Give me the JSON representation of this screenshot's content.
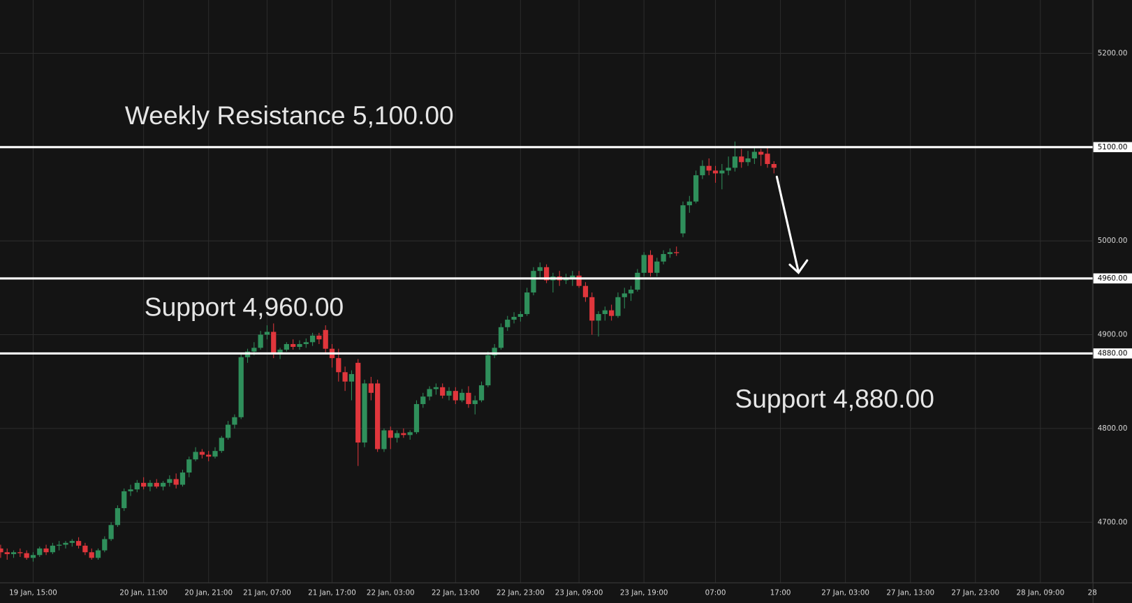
{
  "chart_data": {
    "type": "candlestick",
    "up_color": "#2f8f5b",
    "down_color": "#e0363c",
    "grid": true,
    "xlim": [
      -0.1,
      168.1
    ],
    "ylim": [
      4635.4,
      5256.9
    ],
    "xticks": [
      {
        "value": 5,
        "label": "19 Jan, 15:00"
      },
      {
        "value": 22,
        "label": "20 Jan, 11:00"
      },
      {
        "value": 32,
        "label": "20 Jan, 21:00"
      },
      {
        "value": 41,
        "label": "21 Jan, 07:00"
      },
      {
        "value": 51,
        "label": "21 Jan, 17:00"
      },
      {
        "value": 60,
        "label": "22 Jan, 03:00"
      },
      {
        "value": 70,
        "label": "22 Jan, 13:00"
      },
      {
        "value": 80,
        "label": "22 Jan, 23:00"
      },
      {
        "value": 89,
        "label": "23 Jan, 09:00"
      },
      {
        "value": 99,
        "label": "23 Jan, 19:00"
      },
      {
        "value": 110,
        "label": "07:00"
      },
      {
        "value": 120,
        "label": "17:00"
      },
      {
        "value": 130,
        "label": "27 Jan, 03:00"
      },
      {
        "value": 140,
        "label": "27 Jan, 13:00"
      },
      {
        "value": 150,
        "label": "27 Jan, 23:00"
      },
      {
        "value": 160,
        "label": "28 Jan, 09:00"
      },
      {
        "value": 168,
        "label": "28"
      }
    ],
    "yticks": [
      {
        "value": 4700,
        "label": "4700.00"
      },
      {
        "value": 4800,
        "label": "4800.00"
      },
      {
        "value": 4900,
        "label": "4900.00"
      },
      {
        "value": 5000,
        "label": "5000.00"
      },
      {
        "value": 5200,
        "label": "5200.00"
      }
    ],
    "levels": [
      {
        "value": 5100,
        "label": "5100.00",
        "text": "Weekly Resistance 5,100.00"
      },
      {
        "value": 4960,
        "label": "4960.00",
        "text": "Support 4,960.00"
      },
      {
        "value": 4880,
        "label": "4880.00",
        "text": "Support 4,880.00"
      }
    ],
    "open": [
      4672,
      4668,
      4666,
      4668,
      4667,
      4662,
      4665,
      4672,
      4668,
      4675,
      4676,
      4678,
      4680,
      4675,
      4668,
      4662,
      4670,
      4682,
      4697,
      4715,
      4733,
      4735,
      4742,
      4738,
      4742,
      4738,
      4742,
      4746,
      4740,
      4753,
      4767,
      4775,
      4772,
      4770,
      4776,
      4790,
      4804,
      4812,
      4876,
      4882,
      4886,
      4900,
      4903,
      4880,
      4884,
      4890,
      4887,
      4890,
      4892,
      4899,
      4905,
      4885,
      4875,
      4860,
      4850,
      4870,
      4785,
      4848,
      4848,
      4778,
      4798,
      4790,
      4795,
      4793,
      4796,
      4826,
      4834,
      4842,
      4844,
      4835,
      4840,
      4830,
      4838,
      4826,
      4830,
      4846,
      4878,
      4886,
      4908,
      4916,
      4919,
      4922,
      4945,
      4968,
      4972,
      4958,
      4962,
      4958,
      4960,
      4963,
      4952,
      4940,
      4915,
      4922,
      4926,
      4920,
      4940,
      4944,
      4948,
      4966,
      4985,
      4966,
      4978,
      4986,
      4988,
      5008,
      5038,
      5042,
      5070,
      5080,
      5075,
      5072,
      5075,
      5078,
      5090,
      5084,
      5088,
      5095,
      5093,
      5082
    ],
    "high": [
      4676,
      4672,
      4670,
      4672,
      4670,
      4668,
      4674,
      4676,
      4678,
      4680,
      4680,
      4682,
      4684,
      4678,
      4672,
      4672,
      4685,
      4700,
      4718,
      4736,
      4740,
      4745,
      4748,
      4745,
      4746,
      4744,
      4750,
      4752,
      4756,
      4770,
      4780,
      4778,
      4776,
      4780,
      4792,
      4808,
      4815,
      4880,
      4885,
      4892,
      4904,
      4910,
      4912,
      4886,
      4892,
      4895,
      4894,
      4896,
      4902,
      4902,
      4910,
      4890,
      4885,
      4866,
      4862,
      4874,
      4852,
      4855,
      4852,
      4800,
      4802,
      4798,
      4800,
      4798,
      4830,
      4838,
      4845,
      4848,
      4848,
      4844,
      4844,
      4842,
      4845,
      4835,
      4850,
      4882,
      4890,
      4912,
      4920,
      4924,
      4925,
      4950,
      4972,
      4977,
      4975,
      4966,
      4968,
      4965,
      4968,
      4968,
      4956,
      4945,
      4925,
      4930,
      4932,
      4945,
      4950,
      4952,
      4970,
      4988,
      4990,
      4982,
      4990,
      4992,
      4994,
      5042,
      5048,
      5075,
      5086,
      5088,
      5080,
      5082,
      5090,
      5106,
      5098,
      5096,
      5100,
      5098,
      5100,
      5085
    ],
    "low": [
      4662,
      4660,
      4662,
      4663,
      4660,
      4658,
      4663,
      4665,
      4666,
      4670,
      4672,
      4674,
      4672,
      4665,
      4660,
      4660,
      4668,
      4680,
      4695,
      4712,
      4728,
      4732,
      4735,
      4733,
      4736,
      4734,
      4738,
      4736,
      4738,
      4748,
      4765,
      4768,
      4765,
      4768,
      4774,
      4788,
      4800,
      4810,
      4870,
      4878,
      4884,
      4895,
      4875,
      4874,
      4882,
      4884,
      4884,
      4886,
      4888,
      4890,
      4880,
      4865,
      4850,
      4840,
      4830,
      4760,
      4780,
      4830,
      4775,
      4775,
      4778,
      4785,
      4790,
      4788,
      4794,
      4822,
      4830,
      4836,
      4832,
      4830,
      4826,
      4828,
      4822,
      4815,
      4828,
      4844,
      4875,
      4884,
      4904,
      4912,
      4914,
      4920,
      4942,
      4960,
      4955,
      4945,
      4952,
      4954,
      4952,
      4950,
      4935,
      4900,
      4898,
      4915,
      4915,
      4918,
      4928,
      4936,
      4946,
      4962,
      4962,
      4962,
      4975,
      4982,
      4984,
      5004,
      5030,
      5040,
      5066,
      5070,
      5062,
      5055,
      5070,
      5074,
      5078,
      5080,
      5082,
      5080,
      5078,
      5072
    ],
    "close": [
      4668,
      4666,
      4668,
      4667,
      4662,
      4665,
      4672,
      4668,
      4675,
      4676,
      4678,
      4680,
      4675,
      4668,
      4662,
      4670,
      4682,
      4697,
      4715,
      4733,
      4735,
      4742,
      4738,
      4742,
      4738,
      4742,
      4746,
      4740,
      4753,
      4767,
      4775,
      4772,
      4770,
      4776,
      4790,
      4804,
      4812,
      4876,
      4882,
      4886,
      4900,
      4903,
      4880,
      4884,
      4890,
      4887,
      4890,
      4892,
      4899,
      4895,
      4885,
      4875,
      4860,
      4850,
      4858,
      4785,
      4848,
      4838,
      4778,
      4798,
      4790,
      4795,
      4793,
      4796,
      4826,
      4834,
      4842,
      4844,
      4835,
      4840,
      4830,
      4838,
      4826,
      4830,
      4846,
      4878,
      4886,
      4908,
      4916,
      4919,
      4922,
      4945,
      4968,
      4972,
      4958,
      4962,
      4958,
      4960,
      4963,
      4952,
      4940,
      4915,
      4922,
      4926,
      4920,
      4940,
      4944,
      4948,
      4966,
      4985,
      4966,
      4978,
      4986,
      4988,
      4987,
      5038,
      5042,
      5070,
      5080,
      5075,
      5072,
      5075,
      5078,
      5090,
      5084,
      5088,
      5095,
      5092,
      5082,
      5078
    ]
  }
}
